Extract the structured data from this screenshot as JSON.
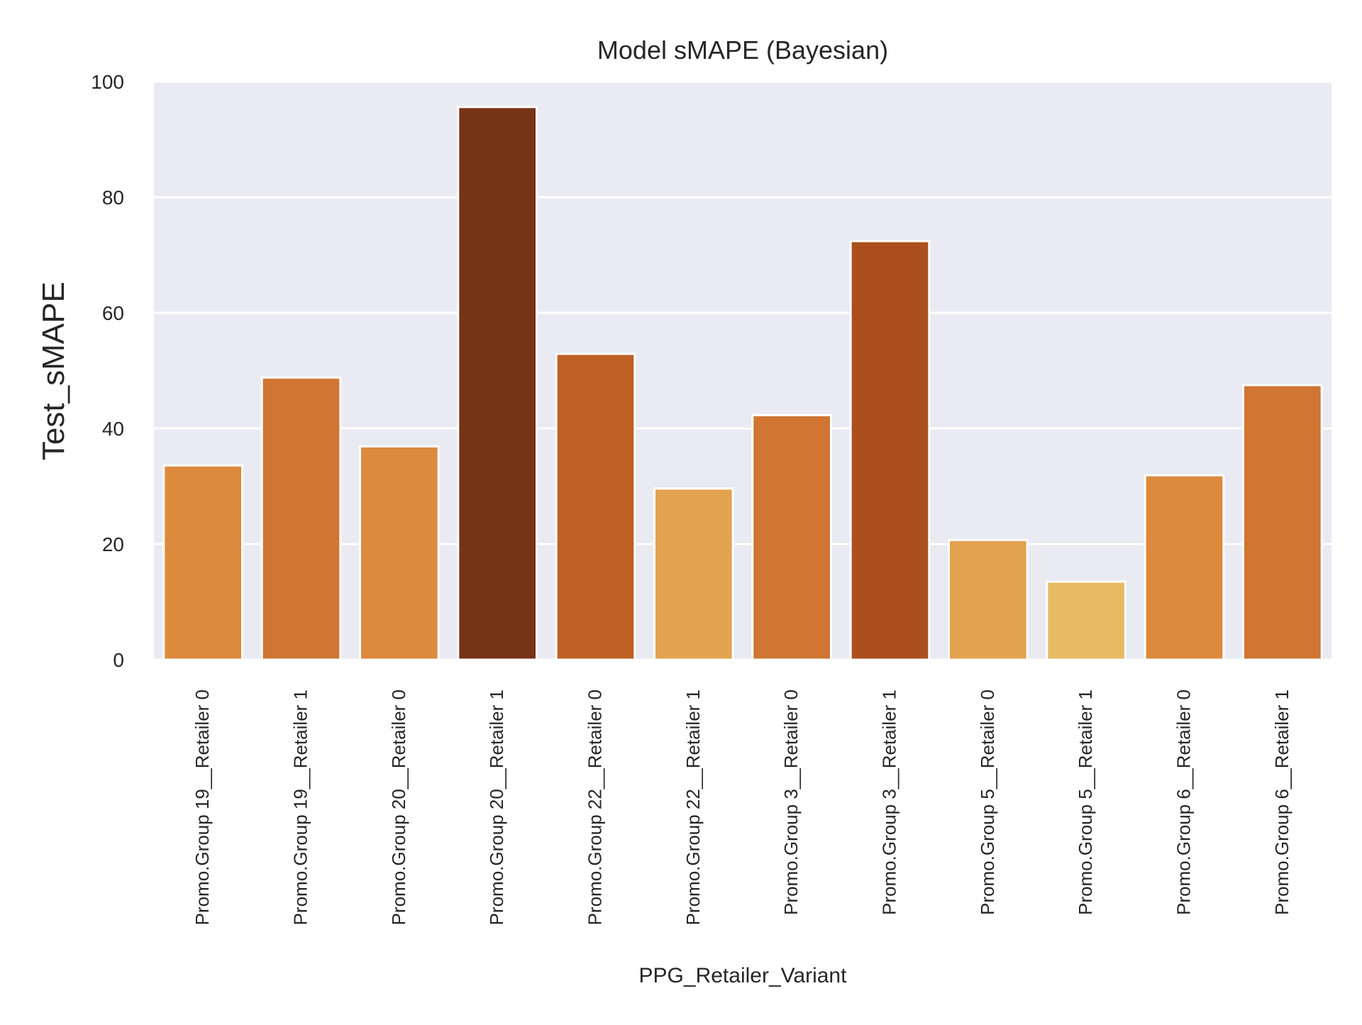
{
  "chart_data": {
    "type": "bar",
    "title": "Model sMAPE (Bayesian)",
    "xlabel": "PPG_Retailer_Variant",
    "ylabel": "Test_sMAPE",
    "ylim": [
      0,
      100
    ],
    "yticks": [
      0,
      20,
      40,
      60,
      80,
      100
    ],
    "grid": true,
    "legend": "none",
    "categories": [
      "Promo.Group 19__Retailer 0",
      "Promo.Group 19__Retailer 1",
      "Promo.Group 20__Retailer 0",
      "Promo.Group 20__Retailer 1",
      "Promo.Group 22__Retailer 0",
      "Promo.Group 22__Retailer 1",
      "Promo.Group 3__Retailer 0",
      "Promo.Group 3__Retailer 1",
      "Promo.Group 5__Retailer 0",
      "Promo.Group 5__Retailer 1",
      "Promo.Group 6__Retailer 0",
      "Promo.Group 6__Retailer 1"
    ],
    "values": [
      33.6,
      48.8,
      36.9,
      95.6,
      52.9,
      29.6,
      42.3,
      72.4,
      20.7,
      13.5,
      31.9,
      47.5
    ],
    "colors": [
      "#dc8a3c",
      "#d07532",
      "#dc8a3c",
      "#763416",
      "#bf6125",
      "#e3a24e",
      "#d07532",
      "#ab4f1e",
      "#e3a24e",
      "#e7ba64",
      "#dc8a3c",
      "#d07532"
    ],
    "plot_background": "#eaeaf2",
    "gridline_color": "#ffffff"
  }
}
